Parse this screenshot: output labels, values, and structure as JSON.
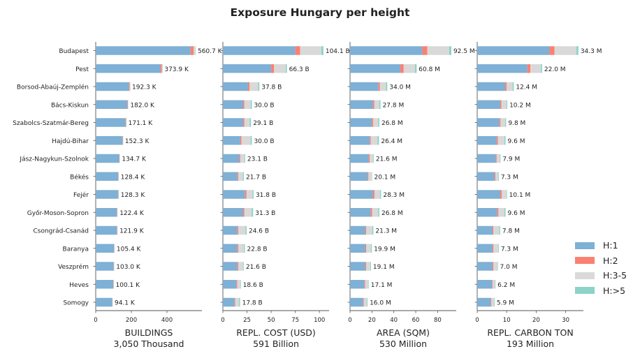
{
  "title": "Exposure Hungary per height",
  "colors": {
    "H:1": "#7fb0d5",
    "H:2": "#fb8072",
    "H:3-5": "#d9d9d9",
    "H:>5": "#8dd3c7"
  },
  "legend": {
    "placement": "right",
    "items": [
      "H:1",
      "H:2",
      "H:3-5",
      "H:>5"
    ]
  },
  "chart_data": [
    {
      "type": "bar",
      "orientation": "horizontal",
      "stacked": true,
      "xlabel": "BUILDINGS",
      "xlabel2": "3,050 Thousand",
      "xlim": [
        0,
        596
      ],
      "ticks": [
        0,
        200,
        400
      ],
      "categories": [
        "Budapest",
        "Pest",
        "Borsod-Abaúj-Zemplén",
        "Bács-Kiskun",
        "Szabolcs-Szatmár-Bereg",
        "Hajdú-Bihar",
        "Jász-Nagykun-Szolnok",
        "Békés",
        "Fejér",
        "Győr-Moson-Sopron",
        "Csongrád-Csanád",
        "Baranya",
        "Veszprém",
        "Heves",
        "Somogy"
      ],
      "series": [
        {
          "name": "H:1",
          "values": [
            532,
            363,
            186,
            178,
            167,
            149,
            132,
            126,
            125,
            119,
            119,
            103,
            101,
            98,
            92
          ]
        },
        {
          "name": "H:2",
          "values": [
            18,
            8,
            4,
            3,
            3,
            2,
            2,
            2,
            2,
            2,
            2,
            1.5,
            1.5,
            1.5,
            1.5
          ]
        },
        {
          "name": "H:3-5",
          "values": [
            9,
            2.5,
            2,
            1,
            1,
            1,
            0.7,
            0.4,
            1.2,
            1.4,
            0.9,
            0.9,
            0.5,
            0.6,
            0.6
          ]
        },
        {
          "name": "H:>5",
          "values": [
            1.7,
            0.4,
            0.3,
            0,
            0.1,
            0.3,
            0,
            0,
            0.1,
            0,
            0,
            0,
            0,
            0,
            0
          ]
        }
      ],
      "labels": [
        "560.7 K",
        "373.9 K",
        "192.3 K",
        "182.0 K",
        "171.1 K",
        "152.3 K",
        "134.7 K",
        "128.4 K",
        "128.3 K",
        "122.4 K",
        "121.9 K",
        "105.4 K",
        "103.0 K",
        "100.1 K",
        "94.1 K"
      ]
    },
    {
      "type": "bar",
      "orientation": "horizontal",
      "stacked": true,
      "xlabel": "REPL. COST (USD)",
      "xlabel2": "591 Billion",
      "xlim": [
        0,
        110
      ],
      "ticks": [
        0,
        25,
        50,
        75,
        100
      ],
      "series": [
        {
          "name": "H:1",
          "values": [
            75,
            50,
            26,
            21,
            21,
            18,
            17,
            15,
            23,
            21,
            15,
            15,
            15,
            14,
            12
          ]
        },
        {
          "name": "H:2",
          "values": [
            5,
            3,
            1.5,
            1.3,
            1.3,
            1.2,
            1,
            1,
            1.5,
            1.3,
            1,
            1,
            1,
            0.8,
            0.7
          ]
        },
        {
          "name": "H:3-5",
          "values": [
            22,
            12,
            9,
            6.5,
            5.5,
            9.5,
            4.3,
            4.7,
            6.3,
            7.5,
            7.5,
            5.8,
            4.8,
            3.3,
            4
          ]
        },
        {
          "name": "H:>5",
          "values": [
            2.1,
            1.3,
            1.3,
            1.2,
            1.3,
            1.3,
            0.8,
            1,
            1,
            1.5,
            1.1,
            1,
            0.8,
            0.5,
            1.1
          ]
        }
      ],
      "labels": [
        "104.1 B",
        "66.3 B",
        "37.8 B",
        "30.0 B",
        "29.1 B",
        "30.0 B",
        "23.1 B",
        "21.7 B",
        "31.8 B",
        "31.3 B",
        "24.6 B",
        "22.8 B",
        "21.6 B",
        "18.6 B",
        "17.8 B"
      ]
    },
    {
      "type": "bar",
      "orientation": "horizontal",
      "stacked": true,
      "xlabel": "AREA (SQM)",
      "xlabel2": "530 Million",
      "xlim": [
        0,
        97
      ],
      "ticks": [
        0,
        20,
        40,
        60,
        80
      ],
      "series": [
        {
          "name": "H:1",
          "values": [
            66,
            46,
            26,
            21,
            20,
            18,
            17,
            16,
            21,
            19,
            14,
            14,
            14,
            13,
            12
          ]
        },
        {
          "name": "H:2",
          "values": [
            4.5,
            3,
            1.3,
            1.2,
            1.2,
            1,
            1,
            0.8,
            1.3,
            1.2,
            0.8,
            0.8,
            0.8,
            0.7,
            0.6
          ]
        },
        {
          "name": "H:3-5",
          "values": [
            20,
            10.3,
            5.5,
            4.5,
            4.5,
            6,
            3,
            3,
            5,
            5.5,
            5.5,
            4.3,
            3.6,
            3,
            2.8
          ]
        },
        {
          "name": "H:>5",
          "values": [
            2,
            1.5,
            1.2,
            1.1,
            1.1,
            1.4,
            0.6,
            0.3,
            1,
            1.1,
            1,
            0.8,
            0.7,
            0.4,
            0.6
          ]
        }
      ],
      "labels": [
        "92.5 M",
        "60.8 M",
        "34.0 M",
        "27.8 M",
        "26.8 M",
        "26.4 M",
        "21.6 M",
        "20.1 M",
        "28.3 M",
        "26.8 M",
        "21.3 M",
        "19.9 M",
        "19.1 M",
        "17.1 M",
        "16.0 M"
      ]
    },
    {
      "type": "bar",
      "orientation": "horizontal",
      "stacked": true,
      "xlabel": "REPL. CARBON TON",
      "xlabel2": "193 Million",
      "xlim": [
        0,
        36
      ],
      "ticks": [
        0,
        10,
        20,
        30
      ],
      "series": [
        {
          "name": "H:1",
          "values": [
            24.5,
            17,
            9.5,
            7.8,
            7.5,
            6.6,
            6.3,
            5.9,
            7.8,
            6.8,
            5.2,
            5.2,
            5.2,
            5,
            4.6
          ]
        },
        {
          "name": "H:2",
          "values": [
            1.7,
            1,
            0.5,
            0.4,
            0.4,
            0.4,
            0.3,
            0.3,
            0.5,
            0.4,
            0.3,
            0.3,
            0.3,
            0.2,
            0.2
          ]
        },
        {
          "name": "H:3-5",
          "values": [
            7.4,
            3.6,
            2,
            1.7,
            1.6,
            2.2,
            1.1,
            0.9,
            1.6,
            2,
            2,
            1.6,
            1.3,
            0.8,
            0.9
          ]
        },
        {
          "name": "H:>5",
          "values": [
            0.7,
            0.4,
            0.4,
            0.3,
            0.3,
            0.4,
            0.2,
            0.2,
            0.2,
            0.4,
            0.3,
            0.2,
            0.2,
            0.2,
            0.2
          ]
        }
      ],
      "labels": [
        "34.3 M",
        "22.0 M",
        "12.4 M",
        "10.2 M",
        "9.8 M",
        "9.6 M",
        "7.9 M",
        "7.3 M",
        "10.1 M",
        "9.6 M",
        "7.8 M",
        "7.3 M",
        "7.0 M",
        "6.2 M",
        "5.9 M"
      ]
    }
  ]
}
